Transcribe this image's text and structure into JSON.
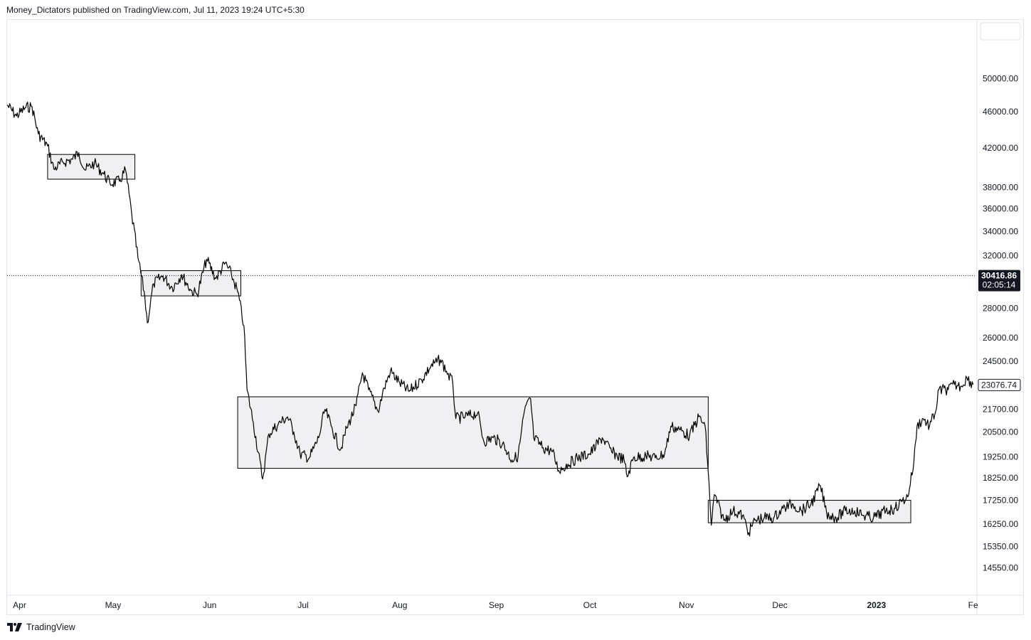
{
  "header": {
    "published": "Money_Dictators published on TradingView.com, Jul 11, 2023 19:24 UTC+5:30"
  },
  "footer": {
    "brand": "TradingView"
  },
  "colors": {
    "price_line": "#000000",
    "box_fill": "#f0f0f2",
    "box_stroke": "#000000",
    "badge_bg": "#131722",
    "badge_text": "#ffffff",
    "grid": "#e0e3eb"
  },
  "price_label": {
    "value": "30416.86",
    "countdown": "02:05:14"
  },
  "last_close_label": "23076.74",
  "chart_data": {
    "type": "line",
    "scale": "log",
    "ylim": [
      13600,
      58000
    ],
    "y_ticks": [
      "50000.00",
      "46000.00",
      "42000.00",
      "38000.00",
      "36000.00",
      "34000.00",
      "32000.00",
      "28000.00",
      "26000.00",
      "24500.00",
      "21700.00",
      "20500.00",
      "19250.00",
      "18250.00",
      "17250.00",
      "16250.00",
      "15350.00",
      "14550.00"
    ],
    "x_ticks": [
      {
        "label": "Apr",
        "date": "2022-04-01"
      },
      {
        "label": "May",
        "date": "2022-05-01"
      },
      {
        "label": "Jun",
        "date": "2022-06-01"
      },
      {
        "label": "Jul",
        "date": "2022-07-01"
      },
      {
        "label": "Aug",
        "date": "2022-08-01"
      },
      {
        "label": "Sep",
        "date": "2022-09-01"
      },
      {
        "label": "Oct",
        "date": "2022-10-01"
      },
      {
        "label": "Nov",
        "date": "2022-11-01"
      },
      {
        "label": "Dec",
        "date": "2022-12-01"
      },
      {
        "label": "2023",
        "date": "2023-01-01"
      },
      {
        "label": "Fe",
        "date": "2023-02-01"
      }
    ],
    "xlim": [
      "2022-03-28",
      "2023-02-02"
    ],
    "series": [
      {
        "points": [
          [
            "2022-03-28",
            46800
          ],
          [
            "2022-03-31",
            45500
          ],
          [
            "2022-04-03",
            46500
          ],
          [
            "2022-04-05",
            46600
          ],
          [
            "2022-04-07",
            43500
          ],
          [
            "2022-04-10",
            42200
          ],
          [
            "2022-04-12",
            39800
          ],
          [
            "2022-04-15",
            40500
          ],
          [
            "2022-04-18",
            40800
          ],
          [
            "2022-04-20",
            41500
          ],
          [
            "2022-04-22",
            39700
          ],
          [
            "2022-04-25",
            40400
          ],
          [
            "2022-04-28",
            39300
          ],
          [
            "2022-04-30",
            38400
          ],
          [
            "2022-05-03",
            38600
          ],
          [
            "2022-05-05",
            39700
          ],
          [
            "2022-05-07",
            35500
          ],
          [
            "2022-05-09",
            31800
          ],
          [
            "2022-05-11",
            29200
          ],
          [
            "2022-05-12",
            27000
          ],
          [
            "2022-05-14",
            29800
          ],
          [
            "2022-05-17",
            30400
          ],
          [
            "2022-05-20",
            29500
          ],
          [
            "2022-05-23",
            30500
          ],
          [
            "2022-05-26",
            29300
          ],
          [
            "2022-05-28",
            29000
          ],
          [
            "2022-05-31",
            31700
          ],
          [
            "2022-06-03",
            30200
          ],
          [
            "2022-06-06",
            31400
          ],
          [
            "2022-06-08",
            30500
          ],
          [
            "2022-06-10",
            29200
          ],
          [
            "2022-06-12",
            26800
          ],
          [
            "2022-06-13",
            22800
          ],
          [
            "2022-06-15",
            21000
          ],
          [
            "2022-06-18",
            18200
          ],
          [
            "2022-06-20",
            20400
          ],
          [
            "2022-06-23",
            20900
          ],
          [
            "2022-06-26",
            21300
          ],
          [
            "2022-06-28",
            20500
          ],
          [
            "2022-06-30",
            19400
          ],
          [
            "2022-07-03",
            19200
          ],
          [
            "2022-07-06",
            20200
          ],
          [
            "2022-07-08",
            21700
          ],
          [
            "2022-07-10",
            20800
          ],
          [
            "2022-07-13",
            19600
          ],
          [
            "2022-07-15",
            20700
          ],
          [
            "2022-07-18",
            21900
          ],
          [
            "2022-07-20",
            23800
          ],
          [
            "2022-07-22",
            22800
          ],
          [
            "2022-07-25",
            21600
          ],
          [
            "2022-07-27",
            22900
          ],
          [
            "2022-07-29",
            23900
          ],
          [
            "2022-08-01",
            23200
          ],
          [
            "2022-08-04",
            22700
          ],
          [
            "2022-08-08",
            23400
          ],
          [
            "2022-08-11",
            24200
          ],
          [
            "2022-08-14",
            24600
          ],
          [
            "2022-08-16",
            23900
          ],
          [
            "2022-08-18",
            23200
          ],
          [
            "2022-08-19",
            21200
          ],
          [
            "2022-08-22",
            21300
          ],
          [
            "2022-08-26",
            21500
          ],
          [
            "2022-08-28",
            20000
          ],
          [
            "2022-08-31",
            20200
          ],
          [
            "2022-09-03",
            19900
          ],
          [
            "2022-09-06",
            19100
          ],
          [
            "2022-09-08",
            19300
          ],
          [
            "2022-09-10",
            21600
          ],
          [
            "2022-09-12",
            22300
          ],
          [
            "2022-09-13",
            20200
          ],
          [
            "2022-09-16",
            19700
          ],
          [
            "2022-09-19",
            19500
          ],
          [
            "2022-09-21",
            18600
          ],
          [
            "2022-09-24",
            18900
          ],
          [
            "2022-09-27",
            19200
          ],
          [
            "2022-10-01",
            19400
          ],
          [
            "2022-10-05",
            20200
          ],
          [
            "2022-10-08",
            19500
          ],
          [
            "2022-10-12",
            19100
          ],
          [
            "2022-10-13",
            18300
          ],
          [
            "2022-10-15",
            19200
          ],
          [
            "2022-10-19",
            19300
          ],
          [
            "2022-10-22",
            19200
          ],
          [
            "2022-10-25",
            19400
          ],
          [
            "2022-10-27",
            20800
          ],
          [
            "2022-10-30",
            20600
          ],
          [
            "2022-11-02",
            20300
          ],
          [
            "2022-11-05",
            21300
          ],
          [
            "2022-11-07",
            20800
          ],
          [
            "2022-11-08",
            18500
          ],
          [
            "2022-11-09",
            16200
          ],
          [
            "2022-11-10",
            17500
          ],
          [
            "2022-11-13",
            16400
          ],
          [
            "2022-11-16",
            16800
          ],
          [
            "2022-11-19",
            16600
          ],
          [
            "2022-11-21",
            15900
          ],
          [
            "2022-11-23",
            16400
          ],
          [
            "2022-11-26",
            16500
          ],
          [
            "2022-11-29",
            16500
          ],
          [
            "2022-12-02",
            16900
          ],
          [
            "2022-12-05",
            17100
          ],
          [
            "2022-12-08",
            16800
          ],
          [
            "2022-12-11",
            17100
          ],
          [
            "2022-12-14",
            17900
          ],
          [
            "2022-12-16",
            16700
          ],
          [
            "2022-12-19",
            16500
          ],
          [
            "2022-12-22",
            16800
          ],
          [
            "2022-12-25",
            16800
          ],
          [
            "2022-12-28",
            16600
          ],
          [
            "2022-12-31",
            16500
          ],
          [
            "2023-01-04",
            16800
          ],
          [
            "2023-01-07",
            16900
          ],
          [
            "2023-01-09",
            17200
          ],
          [
            "2023-01-11",
            17400
          ],
          [
            "2023-01-13",
            19000
          ],
          [
            "2023-01-14",
            20800
          ],
          [
            "2023-01-16",
            21200
          ],
          [
            "2023-01-18",
            20800
          ],
          [
            "2023-01-20",
            21600
          ],
          [
            "2023-01-21",
            22800
          ],
          [
            "2023-01-24",
            22800
          ],
          [
            "2023-01-26",
            23100
          ],
          [
            "2023-01-28",
            23000
          ],
          [
            "2023-01-30",
            23500
          ],
          [
            "2023-02-01",
            23100
          ]
        ]
      }
    ],
    "zones": [
      {
        "x0": "2022-04-10",
        "x1": "2022-05-08",
        "y_low": 38800,
        "y_high": 41300
      },
      {
        "x0": "2022-05-10",
        "x1": "2022-06-11",
        "y_low": 28900,
        "y_high": 30800
      },
      {
        "x0": "2022-06-10",
        "x1": "2022-11-08",
        "y_low": 18700,
        "y_high": 22400
      },
      {
        "x0": "2022-11-08",
        "x1": "2023-01-12",
        "y_low": 16300,
        "y_high": 17250
      }
    ],
    "reference_lines": [
      {
        "value": 30416.86,
        "style": "dotted"
      }
    ],
    "last_value": 23076.74,
    "grid": false,
    "legend": "none"
  }
}
